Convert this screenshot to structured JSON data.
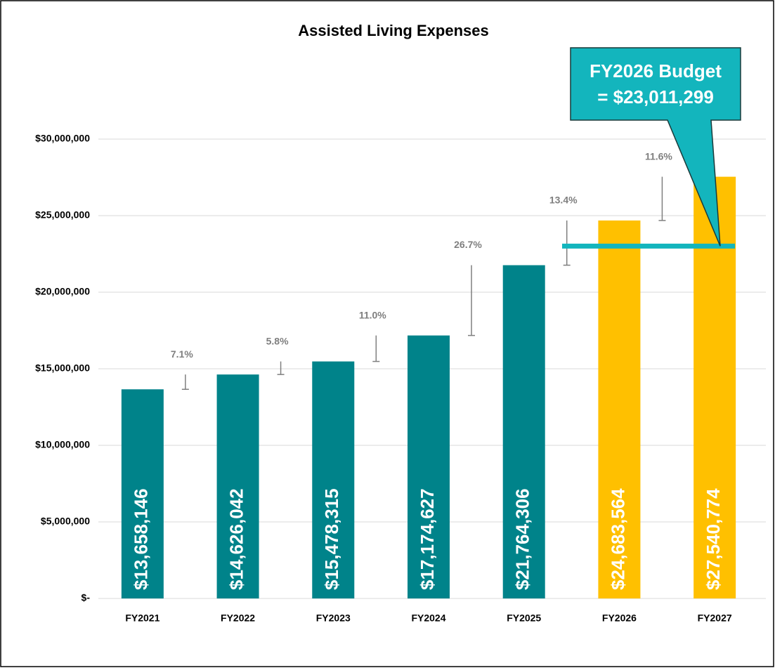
{
  "chart_data": {
    "type": "bar",
    "title": "Assisted Living Expenses",
    "categories": [
      "FY2021",
      "FY2022",
      "FY2023",
      "FY2024",
      "FY2025",
      "FY2026",
      "FY2027"
    ],
    "values": [
      13658146,
      14626042,
      15478315,
      17174627,
      21764306,
      24683564,
      27540774
    ],
    "value_labels": [
      "$13,658,146",
      "$14,626,042",
      "$15,478,315",
      "$17,174,627",
      "$21,764,306",
      "$24,683,564",
      "$27,540,774"
    ],
    "colors": [
      "#00838a",
      "#00838a",
      "#00838a",
      "#00838a",
      "#00838a",
      "#ffc000",
      "#ffc000"
    ],
    "ylim": [
      0,
      30000000
    ],
    "yticks": [
      {
        "value": 0,
        "label": "$-"
      },
      {
        "value": 5000000,
        "label": "$5,000,000"
      },
      {
        "value": 10000000,
        "label": "$10,000,000"
      },
      {
        "value": 15000000,
        "label": "$15,000,000"
      },
      {
        "value": 20000000,
        "label": "$20,000,000"
      },
      {
        "value": 25000000,
        "label": "$25,000,000"
      },
      {
        "value": 30000000,
        "label": "$30,000,000"
      }
    ],
    "grid": true,
    "growth": {
      "values": [
        7.1,
        5.8,
        11.0,
        26.7,
        13.4,
        11.6
      ],
      "value_labels": [
        "7.1%",
        "5.8%",
        "11.0%",
        "26.7%",
        "13.4%",
        "11.6%"
      ],
      "color": "#7f7f7f"
    },
    "budget": {
      "value": 23011299,
      "lines": [
        "FY2026 Budget",
        "= $23,011,299"
      ],
      "color": "#13b5bd"
    }
  }
}
